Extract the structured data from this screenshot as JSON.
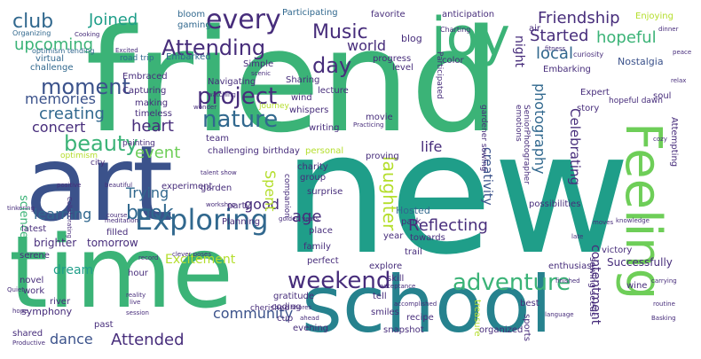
{
  "palette": {
    "green": "#3bb377",
    "teal": "#1f9e89",
    "navy": "#3b528b",
    "purple": "#472d7b",
    "darkteal": "#26828e",
    "lime": "#b4de2c",
    "blue": "#31688e",
    "mint": "#6ece58"
  },
  "words": {
    "friend": "friend",
    "new": "new",
    "art": "art",
    "time": "time",
    "school": "school",
    "joy": "joy",
    "feeling": "Feeling",
    "exploring": "Exploring",
    "every": "every",
    "attending": "Attending",
    "music": "Music",
    "project": "project",
    "nature": "nature",
    "weekend": "weekend",
    "adventure": "adventure",
    "book": "book",
    "beauty": "beauty",
    "moment": "moment",
    "day": "day",
    "joined": "Joined",
    "club": "club",
    "friendship": "Friendship",
    "started": "Started",
    "hopeful": "hopeful",
    "local": "local",
    "upcoming": "upcoming",
    "memories": "memories",
    "creating": "creating",
    "concert": "concert",
    "heart": "heart",
    "event": "event",
    "trying": "Trying",
    "laughter": "laughter",
    "reflecting": "Reflecting",
    "age": "age",
    "good": "good",
    "spent": "Spent",
    "community": "community",
    "attended": "Attended",
    "dance": "dance",
    "learning": "learning",
    "dream": "dream",
    "science": "science",
    "excitement": "Excitement",
    "photography": "photography",
    "celebrating": "Celebrating",
    "creativity": "creativity",
    "contentment": "contentment",
    "life": "life",
    "world": "world",
    "night": "night",
    "blog": "blog",
    "participating": "Participating",
    "anticipation": "anticipation",
    "favorite": "favorite",
    "bloom": "bloom",
    "gaming": "gaming",
    "enjoying": "Enjoying",
    "nostalgia": "Nostalgia",
    "embarking": "Embarking",
    "embarked": "Embarked",
    "embraced": "Embraced",
    "capturing": "Capturing",
    "navigating": "Navigating",
    "simple": "Simple",
    "sharing": "Sharing",
    "progress": "progress",
    "color": "color",
    "level": "level",
    "road_trip": "road trip",
    "virtual": "virtual",
    "challenge": "challenge",
    "optimism_tending": "optimism tending",
    "organizing": "Organizing",
    "making": "making",
    "timeless": "timeless",
    "wind": "wind",
    "whispers": "whispers",
    "lecture": "lecture",
    "writing": "writing",
    "journey": "journey",
    "movie": "movie",
    "proving": "proving",
    "birthday": "birthday",
    "personal": "personal",
    "team": "team",
    "painting": "painting",
    "challenging": "challenging",
    "city": "city",
    "optimism": "optimism",
    "experiment": "experiment",
    "garden": "garden",
    "party": "party",
    "planning": "Planning",
    "surprise": "surprise",
    "group": "group",
    "charity": "charity",
    "companion": "companion",
    "place": "place",
    "family": "family",
    "perfect": "perfect",
    "latest": "latest",
    "filled": "filled",
    "brighter": "brighter",
    "tomorrow": "tomorrow",
    "serene": "serene",
    "novel": "novel",
    "hour": "hour",
    "work": "work",
    "river": "river",
    "symphony": "symphony",
    "past": "past",
    "coding": "coding",
    "cup": "cup",
    "gratitude": "gratitude",
    "cherished": "cherished",
    "evening": "evening",
    "skill": "skill",
    "explore": "explore",
    "smiles": "smiles",
    "recipe": "recipe",
    "snapshot": "snapshot",
    "trail": "trail",
    "towards": "towards",
    "year": "year",
    "hosted": "Hosted",
    "park": "park",
    "treasure": "treasure",
    "organized": "organized",
    "best": "best",
    "sports": "sports",
    "sowing_seeds": "sowing seeds",
    "successfully": "Successfully",
    "enthusiast": "enthusiast",
    "victory": "victory",
    "wine": "wine",
    "possibilities": "possibilities",
    "story": "story",
    "expert": "Expert",
    "soul": "soul",
    "hopeful_dawn": "hopeful dawn",
    "attempting": "Attempting",
    "emotions": "emotions",
    "gardener_sowing": "gardener sowing",
    "seniorphotographer": "SeniorPhotographer",
    "participated": "Participated",
    "air": "air",
    "fitness": "fitness",
    "charting": "Charting",
    "curiosity": "curiosity",
    "dinner": "dinner",
    "peace": "peace",
    "cooking": "Cooking",
    "excited": "Excited",
    "talent_show": "talent show",
    "workshop": "workshop",
    "beautiful": "beautiful",
    "positive": "positive",
    "course": "course",
    "meditation": "meditation",
    "golden_years": "golden years",
    "collaborating": "Collaborating",
    "tinkering": "tinkering",
    "record": "record",
    "clever_poses": "clever poses",
    "reality": "reality",
    "live": "live",
    "session": "session",
    "quiet": "Quiet",
    "hope": "hope",
    "productive": "Productive",
    "shared": "shared",
    "acceptance": "acceptance",
    "accomplished": "accomplished",
    "language": "language",
    "finished": "finished",
    "carrying": "carrying",
    "routine": "routine",
    "basking": "Basking",
    "shores": "shores",
    "ahead": "ahead",
    "tell": "tell",
    "scenic": "scenic",
    "watching": "watching",
    "wonder": "wonder",
    "practicing": "Practicing",
    "knowledge": "knowledge",
    "moves": "moves",
    "cozy": "cozy",
    "relax": "relax",
    "late": "late"
  }
}
